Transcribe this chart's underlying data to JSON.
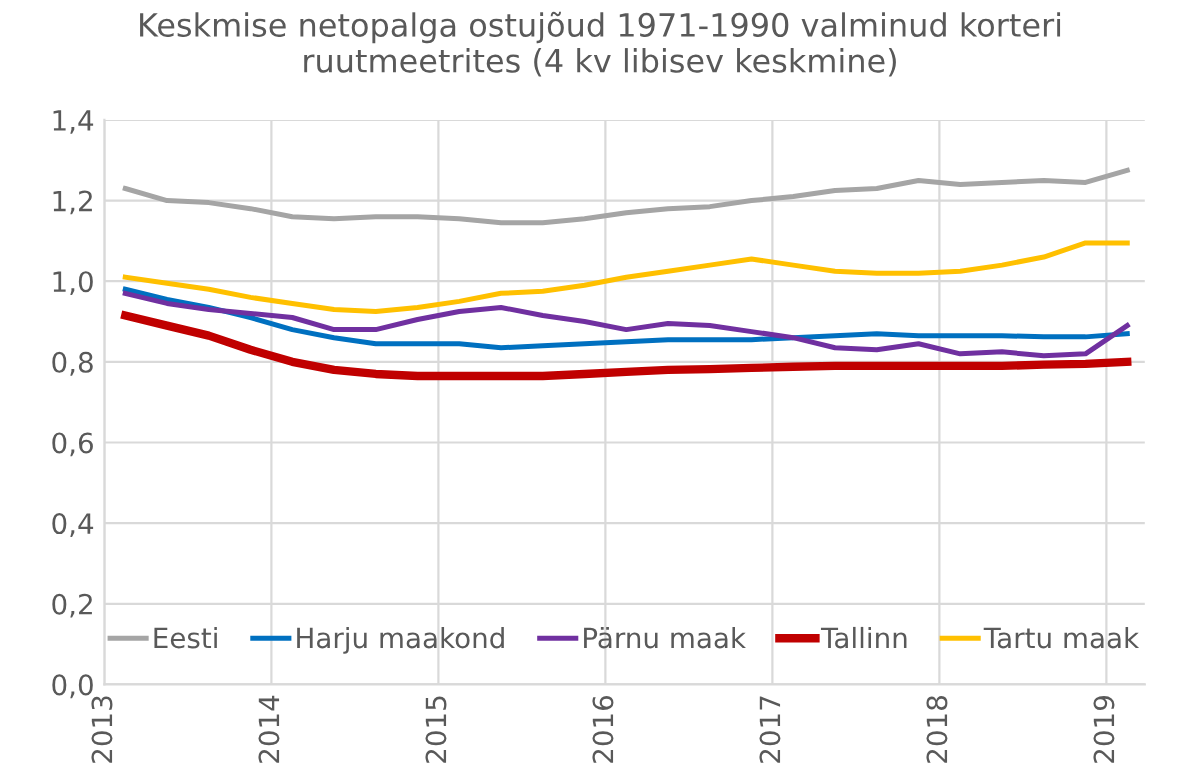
{
  "chart_data": {
    "type": "line",
    "title": "Keskmise netopalga ostujõud 1971-1990 valminud korteri\nruutmeetrites (4 kv libisev keskmine)",
    "x": [
      2013.125,
      2013.375,
      2013.625,
      2013.875,
      2014.125,
      2014.375,
      2014.625,
      2014.875,
      2015.125,
      2015.375,
      2015.625,
      2015.875,
      2016.125,
      2016.375,
      2016.625,
      2016.875,
      2017.125,
      2017.375,
      2017.625,
      2017.875,
      2018.125,
      2018.375,
      2018.625,
      2018.875,
      2019.125
    ],
    "series": [
      {
        "name": "Eesti",
        "color": "#a5a5a5",
        "values": [
          1.23,
          1.2,
          1.195,
          1.18,
          1.16,
          1.155,
          1.16,
          1.16,
          1.155,
          1.145,
          1.145,
          1.155,
          1.17,
          1.18,
          1.185,
          1.2,
          1.21,
          1.225,
          1.23,
          1.25,
          1.24,
          1.245,
          1.25,
          1.245,
          1.275
        ]
      },
      {
        "name": "Harju maakond",
        "color": "#0070c0",
        "values": [
          0.98,
          0.955,
          0.935,
          0.91,
          0.88,
          0.86,
          0.845,
          0.845,
          0.845,
          0.835,
          0.84,
          0.845,
          0.85,
          0.855,
          0.855,
          0.855,
          0.86,
          0.865,
          0.87,
          0.865,
          0.865,
          0.865,
          0.862,
          0.862,
          0.87
        ]
      },
      {
        "name": "Pärnu maak",
        "color": "#7030a0",
        "values": [
          0.97,
          0.945,
          0.93,
          0.92,
          0.91,
          0.88,
          0.88,
          0.905,
          0.925,
          0.935,
          0.915,
          0.9,
          0.88,
          0.895,
          0.89,
          0.875,
          0.86,
          0.835,
          0.83,
          0.845,
          0.82,
          0.825,
          0.815,
          0.82,
          0.89
        ]
      },
      {
        "name": "Tallinn",
        "color": "#c00000",
        "values": [
          0.915,
          0.89,
          0.865,
          0.83,
          0.8,
          0.78,
          0.77,
          0.765,
          0.765,
          0.765,
          0.765,
          0.77,
          0.775,
          0.78,
          0.782,
          0.785,
          0.788,
          0.79,
          0.79,
          0.79,
          0.79,
          0.79,
          0.793,
          0.795,
          0.8
        ]
      },
      {
        "name": "Tartu maak",
        "color": "#ffc000",
        "values": [
          1.01,
          0.995,
          0.98,
          0.96,
          0.945,
          0.93,
          0.925,
          0.935,
          0.95,
          0.97,
          0.975,
          0.99,
          1.01,
          1.025,
          1.04,
          1.055,
          1.04,
          1.025,
          1.02,
          1.02,
          1.025,
          1.04,
          1.06,
          1.095,
          1.095
        ]
      }
    ],
    "xlim": [
      2013,
      2019.23
    ],
    "xticks": [
      2013,
      2014,
      2015,
      2016,
      2017,
      2018,
      2019
    ],
    "ylim": [
      0,
      1.4
    ],
    "yticks": [
      {
        "value": 0,
        "label": "0,0"
      },
      {
        "value": 0.2,
        "label": "0,2"
      },
      {
        "value": 0.4,
        "label": "0,4"
      },
      {
        "value": 0.6,
        "label": "0,6"
      },
      {
        "value": 0.8,
        "label": "0,8"
      },
      {
        "value": 1.0,
        "label": "1,0"
      },
      {
        "value": 1.2,
        "label": "1,2"
      },
      {
        "value": 1.4,
        "label": "1,4"
      }
    ],
    "grid": true,
    "legend": "bottom",
    "marker": "none",
    "line_style": "solid"
  }
}
